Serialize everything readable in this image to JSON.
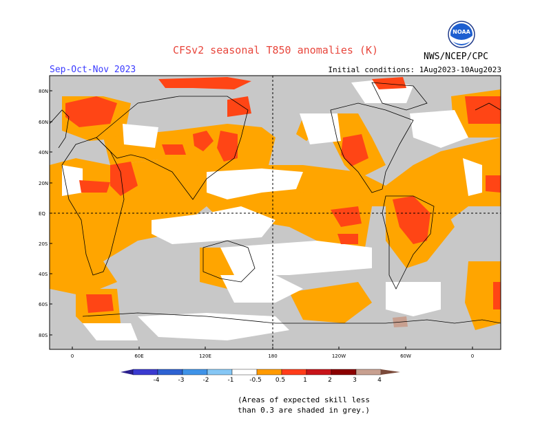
{
  "title": "CFSv2 seasonal T850 anomalies (K)",
  "season": "Sep-Oct-Nov 2023",
  "agency": "NWS/NCEP/CPC",
  "initial_conditions": "Initial conditions: 1Aug2023-10Aug2023",
  "logo_text": "NOAA",
  "lat_labels": [
    "80N",
    "60N",
    "40N",
    "20N",
    "EQ",
    "20S",
    "40S",
    "60S",
    "80S"
  ],
  "lon_labels": [
    "0",
    "60E",
    "120E",
    "180",
    "120W",
    "60W",
    "0"
  ],
  "colorbar_labels": [
    "-4",
    "-3",
    "-2",
    "-1",
    "-0.5",
    "0.5",
    "1",
    "2",
    "3",
    "4"
  ],
  "colorbar_colors": [
    "#2a1f8c",
    "#3a3ad0",
    "#2e62d2",
    "#3f93e8",
    "#86c7f5",
    "#ffffff",
    "#ff9a00",
    "#ff3c1a",
    "#c8141a",
    "#8b0000",
    "#c8a090",
    "#7a4a3a"
  ],
  "note_line1": "(Areas of expected skill less",
  "note_line2": "than 0.3 are shaded in grey.)",
  "colors": {
    "grey": "#c8c8c8",
    "orange": "#ffa500",
    "red": "#ff4515",
    "title": "#e8463c",
    "season": "#3a3aff"
  }
}
